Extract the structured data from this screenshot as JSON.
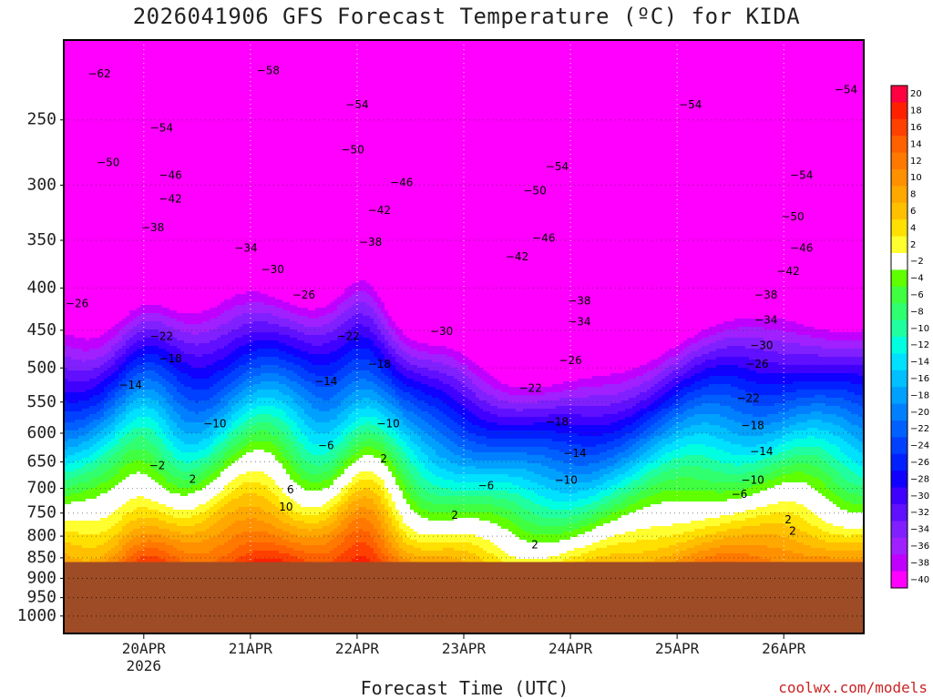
{
  "chart_data": {
    "type": "contour",
    "title": "2026041906 GFS Forecast Temperature (ºC) for KIDA",
    "xlabel": "Forecast Time (UTC)",
    "ylabel": "",
    "credit": "coolwx.com/models",
    "y_axis": {
      "scale": "log-pressure",
      "top": 200,
      "bottom": 1050,
      "tick_values": [
        250,
        300,
        350,
        400,
        450,
        500,
        550,
        600,
        650,
        700,
        750,
        800,
        850,
        900,
        950,
        1000
      ],
      "tick_labels": [
        "250",
        "300",
        "350",
        "400",
        "450",
        "500",
        "550",
        "600",
        "650",
        "700",
        "750",
        "800",
        "850",
        "900",
        "950",
        "1000"
      ]
    },
    "x_axis": {
      "start_hour": 6,
      "end_hour": 186,
      "ticks": [
        {
          "label": "20APR",
          "sub": "2026",
          "hour": 24
        },
        {
          "label": "21APR",
          "sub": "",
          "hour": 48
        },
        {
          "label": "22APR",
          "sub": "",
          "hour": 72
        },
        {
          "label": "23APR",
          "sub": "",
          "hour": 96
        },
        {
          "label": "24APR",
          "sub": "",
          "hour": 120
        },
        {
          "label": "25APR",
          "sub": "",
          "hour": 144
        },
        {
          "label": "26APR",
          "sub": "",
          "hour": 168
        }
      ]
    },
    "terrain_pressure": 860,
    "colorbar": {
      "levels": [
        20,
        18,
        16,
        14,
        12,
        10,
        8,
        6,
        4,
        2,
        -2,
        -4,
        -6,
        -8,
        -10,
        -12,
        -14,
        -16,
        -18,
        -20,
        -22,
        -24,
        -26,
        -28,
        -30,
        -32,
        -34,
        -36,
        -38,
        -40
      ],
      "labels": [
        "20",
        "18",
        "16",
        "14",
        "12",
        "10",
        "8",
        "6",
        "4",
        "2",
        "−2",
        "−4",
        "−6",
        "−8",
        "−10",
        "−12",
        "−14",
        "−16",
        "−18",
        "−20",
        "−22",
        "−24",
        "−26",
        "−28",
        "−30",
        "−32",
        "−34",
        "−36",
        "−38",
        "−40"
      ],
      "colors": [
        "#ff0040",
        "#ff2000",
        "#ff4000",
        "#ff6000",
        "#ff7800",
        "#ff9000",
        "#ffa800",
        "#ffc000",
        "#ffe000",
        "#ffff30",
        "#ffffff",
        "#60ff00",
        "#40ff40",
        "#30ff70",
        "#20ffa0",
        "#00ffe0",
        "#00e0ff",
        "#00c0ff",
        "#00a0ff",
        "#0080ff",
        "#0060ff",
        "#0040ff",
        "#0020ff",
        "#1000ff",
        "#4000ff",
        "#6010ff",
        "#8020ff",
        "#a020ff",
        "#c000ff",
        "#ff00ff"
      ]
    },
    "contour_labels": [
      {
        "text": "−62",
        "hour": 14,
        "p": 220
      },
      {
        "text": "−58",
        "hour": 52,
        "p": 218
      },
      {
        "text": "−54",
        "hour": 28,
        "p": 256
      },
      {
        "text": "−54",
        "hour": 72,
        "p": 240
      },
      {
        "text": "−54",
        "hour": 117,
        "p": 285
      },
      {
        "text": "−54",
        "hour": 147,
        "p": 240
      },
      {
        "text": "−54",
        "hour": 172,
        "p": 292
      },
      {
        "text": "−54",
        "hour": 182,
        "p": 230
      },
      {
        "text": "−50",
        "hour": 16,
        "p": 282
      },
      {
        "text": "−50",
        "hour": 71,
        "p": 272
      },
      {
        "text": "−50",
        "hour": 112,
        "p": 305
      },
      {
        "text": "−50",
        "hour": 170,
        "p": 328
      },
      {
        "text": "−46",
        "hour": 30,
        "p": 292
      },
      {
        "text": "−46",
        "hour": 82,
        "p": 298
      },
      {
        "text": "−46",
        "hour": 114,
        "p": 348
      },
      {
        "text": "−46",
        "hour": 172,
        "p": 358
      },
      {
        "text": "−42",
        "hour": 30,
        "p": 312
      },
      {
        "text": "−42",
        "hour": 77,
        "p": 322
      },
      {
        "text": "−42",
        "hour": 108,
        "p": 367
      },
      {
        "text": "−42",
        "hour": 169,
        "p": 382
      },
      {
        "text": "−38",
        "hour": 26,
        "p": 338
      },
      {
        "text": "−38",
        "hour": 75,
        "p": 352
      },
      {
        "text": "−38",
        "hour": 122,
        "p": 415
      },
      {
        "text": "−38",
        "hour": 164,
        "p": 408
      },
      {
        "text": "−34",
        "hour": 47,
        "p": 358
      },
      {
        "text": "−34",
        "hour": 122,
        "p": 440
      },
      {
        "text": "−34",
        "hour": 164,
        "p": 438
      },
      {
        "text": "−30",
        "hour": 53,
        "p": 380
      },
      {
        "text": "−30",
        "hour": 91,
        "p": 452
      },
      {
        "text": "−30",
        "hour": 163,
        "p": 470
      },
      {
        "text": "−26",
        "hour": 9,
        "p": 418
      },
      {
        "text": "−26",
        "hour": 60,
        "p": 408
      },
      {
        "text": "−26",
        "hour": 120,
        "p": 490
      },
      {
        "text": "−26",
        "hour": 162,
        "p": 495
      },
      {
        "text": "−22",
        "hour": 28,
        "p": 458
      },
      {
        "text": "−22",
        "hour": 70,
        "p": 458
      },
      {
        "text": "−22",
        "hour": 111,
        "p": 530
      },
      {
        "text": "−22",
        "hour": 160,
        "p": 545
      },
      {
        "text": "−18",
        "hour": 30,
        "p": 488
      },
      {
        "text": "−18",
        "hour": 77,
        "p": 495
      },
      {
        "text": "−18",
        "hour": 117,
        "p": 582
      },
      {
        "text": "−18",
        "hour": 161,
        "p": 588
      },
      {
        "text": "−14",
        "hour": 21,
        "p": 525
      },
      {
        "text": "−14",
        "hour": 65,
        "p": 520
      },
      {
        "text": "−14",
        "hour": 121,
        "p": 635
      },
      {
        "text": "−14",
        "hour": 163,
        "p": 632
      },
      {
        "text": "−10",
        "hour": 40,
        "p": 585
      },
      {
        "text": "−10",
        "hour": 79,
        "p": 585
      },
      {
        "text": "−10",
        "hour": 119,
        "p": 685
      },
      {
        "text": "−10",
        "hour": 161,
        "p": 685
      },
      {
        "text": "−6",
        "hour": 65,
        "p": 622
      },
      {
        "text": "−6",
        "hour": 101,
        "p": 695
      },
      {
        "text": "−6",
        "hour": 158,
        "p": 712
      },
      {
        "text": "−2",
        "hour": 27,
        "p": 658
      },
      {
        "text": "2",
        "hour": 35,
        "p": 683
      },
      {
        "text": "2",
        "hour": 78,
        "p": 645
      },
      {
        "text": "2",
        "hour": 94,
        "p": 755
      },
      {
        "text": "2",
        "hour": 112,
        "p": 820
      },
      {
        "text": "2",
        "hour": 169,
        "p": 765
      },
      {
        "text": "2",
        "hour": 170,
        "p": 790
      },
      {
        "text": "6",
        "hour": 57,
        "p": 703
      },
      {
        "text": "10",
        "hour": 56,
        "p": 738
      }
    ]
  }
}
